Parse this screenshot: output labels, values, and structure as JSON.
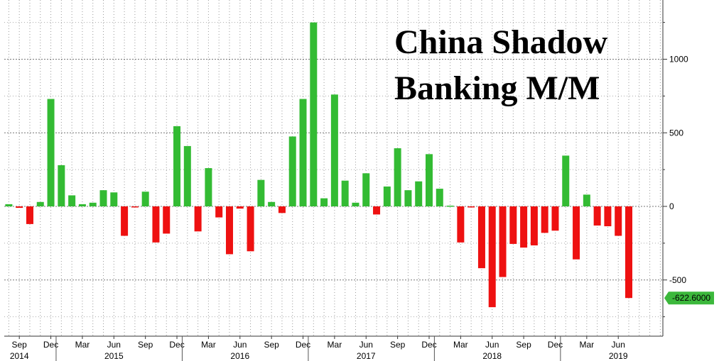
{
  "chart_data": {
    "type": "bar",
    "title_lines": [
      "China Shadow",
      "Banking M/M"
    ],
    "ylim": [
      -830,
      1400
    ],
    "y_ticks": [
      1000,
      500,
      0,
      -500
    ],
    "y_tick_labels": [
      "1000",
      "500",
      "0",
      "-500"
    ],
    "grid": true,
    "last_value_label": "-622.6000",
    "colors": {
      "positive": "#33bb33",
      "negative": "#ee1111",
      "badge": "#3cb83c"
    },
    "x": [
      "2014-08",
      "2014-09",
      "2014-10",
      "2014-11",
      "2014-12",
      "2015-01",
      "2015-02",
      "2015-03",
      "2015-04",
      "2015-05",
      "2015-06",
      "2015-07",
      "2015-08",
      "2015-09",
      "2015-10",
      "2015-11",
      "2015-12",
      "2016-01",
      "2016-02",
      "2016-03",
      "2016-04",
      "2016-05",
      "2016-06",
      "2016-07",
      "2016-08",
      "2016-09",
      "2016-10",
      "2016-11",
      "2016-12",
      "2017-01",
      "2017-02",
      "2017-03",
      "2017-04",
      "2017-05",
      "2017-06",
      "2017-07",
      "2017-08",
      "2017-09",
      "2017-10",
      "2017-11",
      "2017-12",
      "2018-01",
      "2018-02",
      "2018-03",
      "2018-04",
      "2018-05",
      "2018-06",
      "2018-07",
      "2018-08",
      "2018-09",
      "2018-10",
      "2018-11",
      "2018-12",
      "2019-01",
      "2019-02",
      "2019-03",
      "2019-04",
      "2019-05",
      "2019-06",
      "2019-07"
    ],
    "values": [
      15,
      -10,
      -120,
      30,
      730,
      280,
      75,
      15,
      25,
      110,
      95,
      -200,
      -5,
      100,
      -245,
      -185,
      545,
      410,
      -170,
      260,
      -75,
      -325,
      -15,
      -305,
      180,
      30,
      -45,
      475,
      730,
      1250,
      55,
      760,
      175,
      25,
      225,
      -55,
      135,
      395,
      110,
      170,
      355,
      120,
      5,
      -245,
      -5,
      -420,
      -685,
      -480,
      -255,
      -280,
      -265,
      -180,
      -165,
      345,
      -360,
      80,
      -130,
      -135,
      -200,
      -622.6
    ],
    "x_tick_labels": [
      "Sep",
      "Dec",
      "Mar",
      "Jun",
      "Sep",
      "Dec",
      "Mar",
      "Jun",
      "Sep",
      "Dec",
      "Mar",
      "Jun",
      "Sep",
      "Dec",
      "Mar",
      "Jun",
      "Sep",
      "Dec",
      "Mar",
      "Jun"
    ],
    "x_tick_index": [
      1,
      4,
      7,
      10,
      13,
      16,
      19,
      22,
      25,
      28,
      31,
      34,
      37,
      40,
      43,
      46,
      49,
      52,
      55,
      58
    ],
    "year_labels": [
      "2014",
      "2015",
      "2016",
      "2017",
      "2018",
      "2019"
    ],
    "year_label_index": [
      1,
      10,
      22,
      34,
      46,
      58
    ]
  }
}
